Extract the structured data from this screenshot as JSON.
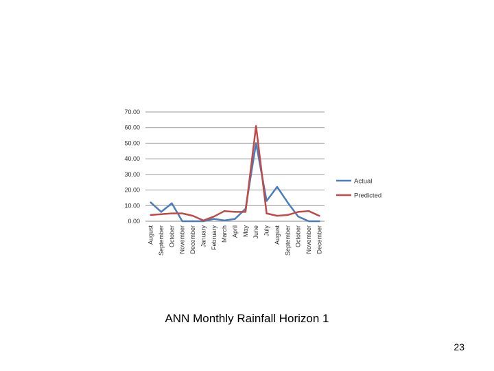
{
  "slide": {
    "caption": "ANN Monthly Rainfall Horizon 1",
    "page_number": "23"
  },
  "chart_data": {
    "type": "line",
    "title": "",
    "xlabel": "",
    "ylabel": "",
    "ylim": [
      0,
      70
    ],
    "yticks": [
      "0.00",
      "10.00",
      "20.00",
      "30.00",
      "40.00",
      "50.00",
      "60.00",
      "70.00"
    ],
    "grid": true,
    "legend_position": "right",
    "categories": [
      "August",
      "September",
      "October",
      "November",
      "December",
      "January",
      "February",
      "March",
      "April",
      "May",
      "June",
      "July",
      "August",
      "September",
      "October",
      "November",
      "December"
    ],
    "series": [
      {
        "name": "Actual",
        "color": "#4a7ebb",
        "values": [
          12,
          6,
          11.5,
          0,
          0,
          0,
          1.5,
          0.5,
          1.5,
          8,
          50,
          13,
          22,
          12,
          3,
          0,
          0
        ]
      },
      {
        "name": "Predicted",
        "color": "#be4b48",
        "values": [
          4,
          4.5,
          5,
          5,
          3.5,
          0.5,
          3,
          6.5,
          6,
          6,
          61,
          5,
          3.5,
          4,
          6,
          6.5,
          3.5
        ]
      }
    ]
  }
}
